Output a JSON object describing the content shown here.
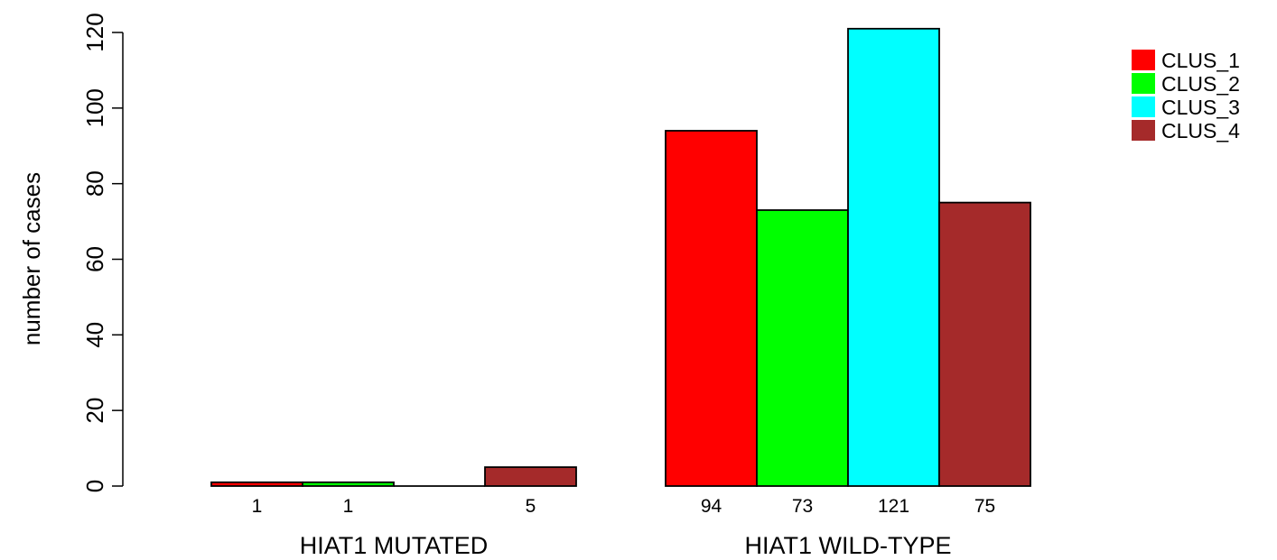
{
  "chart_data": {
    "type": "bar",
    "title": "",
    "xlabel": "",
    "ylabel": "number of cases",
    "ylim": [
      0,
      120
    ],
    "yticks": [
      0,
      20,
      40,
      60,
      80,
      100,
      120
    ],
    "grid": false,
    "legend_position": "top-right",
    "categories": [
      "HIAT1 MUTATED",
      "HIAT1 WILD-TYPE"
    ],
    "series": [
      {
        "name": "CLUS_1",
        "color": "#FF0000",
        "values": [
          1,
          94
        ]
      },
      {
        "name": "CLUS_2",
        "color": "#00FF00",
        "values": [
          1,
          73
        ]
      },
      {
        "name": "CLUS_3",
        "color": "#00FFFF",
        "values": [
          0,
          121
        ]
      },
      {
        "name": "CLUS_4",
        "color": "#A52A2A",
        "values": [
          5,
          75
        ]
      }
    ],
    "data_labels": [
      [
        "1",
        "1",
        "",
        "5"
      ],
      [
        "94",
        "73",
        "121",
        "75"
      ]
    ]
  }
}
